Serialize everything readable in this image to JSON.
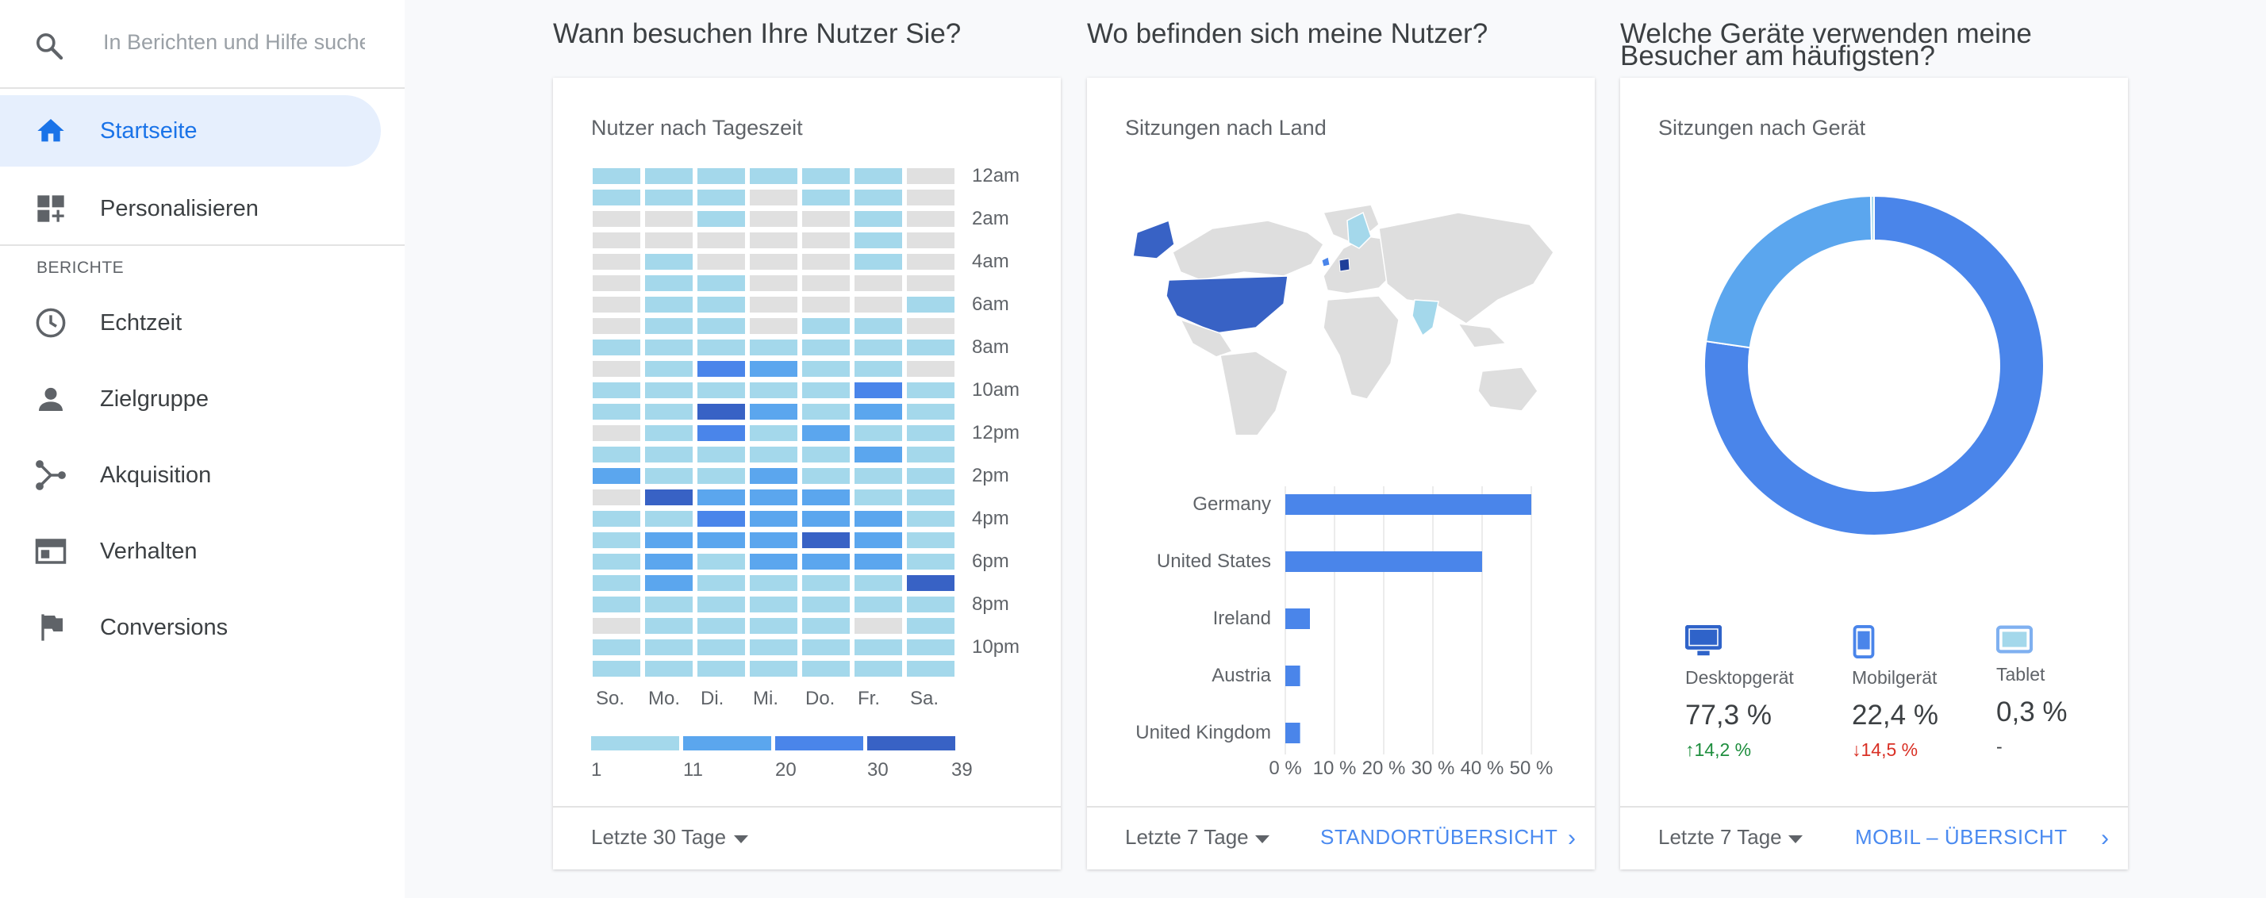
{
  "search": {
    "placeholder": "In Berichten und Hilfe suche",
    "icon": "search-icon"
  },
  "nav": {
    "home": {
      "label": "Startseite",
      "icon": "home-icon"
    },
    "customize": {
      "label": "Personalisieren",
      "icon": "dashboard-add-icon"
    },
    "section_label": "BERICHTE",
    "reports": [
      {
        "label": "Echtzeit",
        "icon": "clock-icon"
      },
      {
        "label": "Zielgruppe",
        "icon": "person-icon"
      },
      {
        "label": "Akquisition",
        "icon": "acquisition-icon"
      },
      {
        "label": "Verhalten",
        "icon": "behavior-icon"
      },
      {
        "label": "Conversions",
        "icon": "flag-icon"
      }
    ]
  },
  "sections": {
    "time": "Wann besuchen Ihre Nutzer Sie?",
    "location": "Wo befinden sich meine Nutzer?",
    "devices_line1": "Welche Geräte verwenden meine",
    "devices_line2": "Besucher am häufigsten?"
  },
  "cards": {
    "time": {
      "title": "Nutzer nach Tageszeit",
      "period": "Letzte 30 Tage"
    },
    "location": {
      "title": "Sitzungen nach Land",
      "period": "Letzte 7 Tage",
      "link": "STANDORTÜBERSICHT"
    },
    "devices": {
      "title": "Sitzungen nach Gerät",
      "period": "Letzte 7 Tage",
      "link": "MOBIL – ÜBERSICHT"
    }
  },
  "heatmap": {
    "days": [
      "So.",
      "Mo.",
      "Di.",
      "Mi.",
      "Do.",
      "Fr.",
      "Sa."
    ],
    "hour_labels": [
      "12am",
      "2am",
      "4am",
      "6am",
      "8am",
      "10am",
      "12pm",
      "2pm",
      "4pm",
      "6pm",
      "8pm",
      "10pm"
    ],
    "legend": [
      "1",
      "11",
      "20",
      "30",
      "39"
    ],
    "colors": [
      "#e0e0e0",
      "#a4d8eb",
      "#5ba6ee",
      "#4a85ea",
      "#3862c5"
    ],
    "levels": [
      [
        1,
        1,
        1,
        1,
        1,
        1,
        0
      ],
      [
        1,
        1,
        1,
        0,
        1,
        1,
        0
      ],
      [
        0,
        0,
        1,
        0,
        0,
        1,
        0
      ],
      [
        0,
        0,
        0,
        0,
        0,
        1,
        0
      ],
      [
        0,
        1,
        0,
        0,
        0,
        1,
        0
      ],
      [
        0,
        1,
        1,
        0,
        0,
        0,
        0
      ],
      [
        0,
        1,
        1,
        0,
        0,
        0,
        1
      ],
      [
        0,
        1,
        1,
        0,
        1,
        1,
        0
      ],
      [
        1,
        1,
        1,
        1,
        1,
        1,
        1
      ],
      [
        0,
        1,
        3,
        2,
        1,
        1,
        0
      ],
      [
        1,
        1,
        1,
        1,
        1,
        3,
        1
      ],
      [
        1,
        1,
        4,
        2,
        1,
        2,
        1
      ],
      [
        0,
        1,
        3,
        1,
        2,
        1,
        1
      ],
      [
        1,
        1,
        1,
        1,
        1,
        2,
        1
      ],
      [
        2,
        1,
        1,
        2,
        1,
        1,
        1
      ],
      [
        0,
        4,
        2,
        2,
        2,
        1,
        1
      ],
      [
        1,
        1,
        3,
        2,
        2,
        2,
        1
      ],
      [
        1,
        2,
        2,
        2,
        4,
        2,
        1
      ],
      [
        1,
        2,
        1,
        2,
        2,
        2,
        1
      ],
      [
        1,
        2,
        1,
        1,
        1,
        1,
        4
      ],
      [
        1,
        1,
        1,
        1,
        1,
        1,
        1
      ],
      [
        0,
        1,
        1,
        1,
        1,
        0,
        1
      ],
      [
        1,
        1,
        1,
        1,
        1,
        1,
        1
      ],
      [
        1,
        1,
        1,
        1,
        1,
        1,
        1
      ]
    ]
  },
  "chart_data": [
    {
      "type": "bar",
      "orientation": "horizontal",
      "categories": [
        "Germany",
        "United States",
        "Ireland",
        "Austria",
        "United Kingdom"
      ],
      "values": [
        50,
        40,
        5,
        3,
        3
      ],
      "xlim": [
        0,
        50
      ],
      "xticks": [
        "0 %",
        "10 %",
        "20 %",
        "30 %",
        "40 %",
        "50 %"
      ],
      "color": "#4a85ea",
      "grid": true
    },
    {
      "type": "pie",
      "donut": true,
      "categories": [
        "Desktopgerät",
        "Mobilgerät",
        "Tablet"
      ],
      "values": [
        77.3,
        22.4,
        0.3
      ],
      "colors": [
        "#4a85ea",
        "#5ba6ee",
        "#a4d8eb"
      ]
    }
  ],
  "devices": [
    {
      "name": "Desktopgerät",
      "value": "77,3 %",
      "change": "↑14,2 %",
      "change_color": "#1e8e3e",
      "icon": "desktop-icon"
    },
    {
      "name": "Mobilgerät",
      "value": "22,4 %",
      "change": "↓14,5 %",
      "change_color": "#d93025",
      "icon": "mobile-icon"
    },
    {
      "name": "Tablet",
      "value": "0,3 %",
      "change": "-",
      "change_color": "#3c4043",
      "icon": "tablet-icon"
    }
  ]
}
